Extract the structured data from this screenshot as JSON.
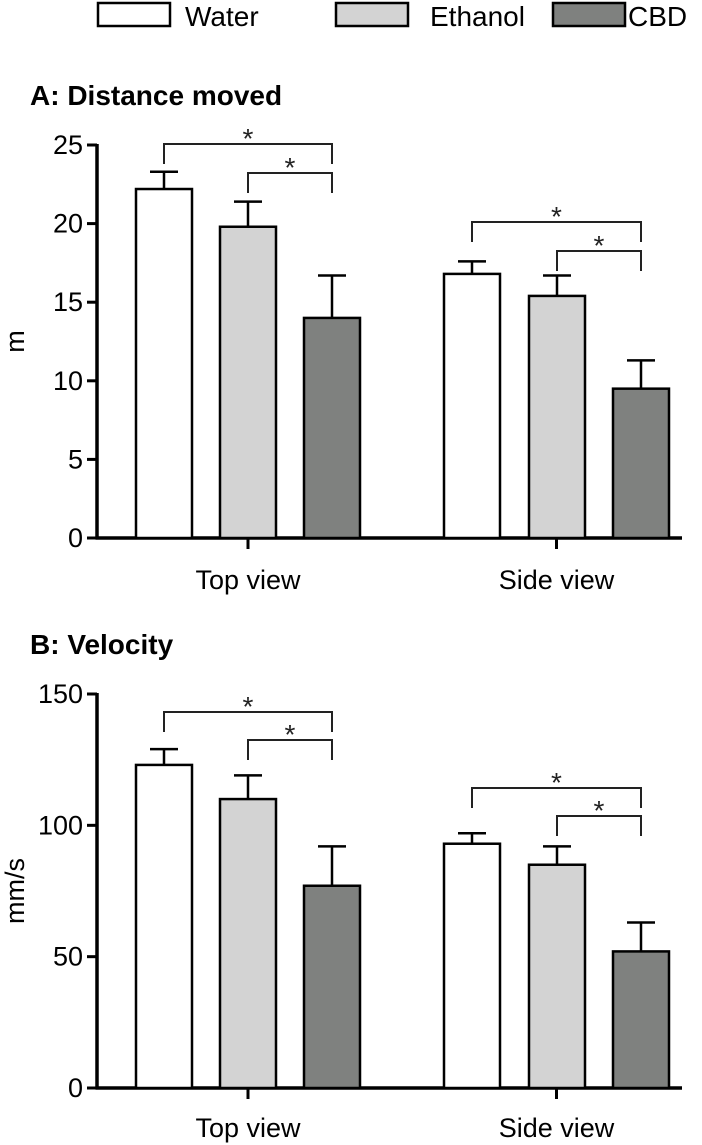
{
  "legend": [
    {
      "name": "Water",
      "color": "#ffffff"
    },
    {
      "name": "Ethanol",
      "color": "#d3d3d3"
    },
    {
      "name": "CBD",
      "color": "#7f817f"
    }
  ],
  "chart_data": [
    {
      "type": "bar",
      "title": "A: Distance moved",
      "ylabel": "m",
      "ylim": [
        0,
        25
      ],
      "yticks": [
        0,
        5,
        10,
        15,
        20,
        25
      ],
      "categories": [
        "Top view",
        "Side view"
      ],
      "series": [
        {
          "name": "Water",
          "values": [
            22.2,
            16.8
          ],
          "errors": [
            1.1,
            0.8
          ]
        },
        {
          "name": "Ethanol",
          "values": [
            19.8,
            15.4
          ],
          "errors": [
            1.6,
            1.3
          ]
        },
        {
          "name": "CBD",
          "values": [
            14.0,
            9.5
          ],
          "errors": [
            2.7,
            1.8
          ]
        }
      ],
      "significance": [
        {
          "category": 0,
          "from": "Water",
          "to": "CBD",
          "label": "*"
        },
        {
          "category": 0,
          "from": "Ethanol",
          "to": "CBD",
          "label": "*"
        },
        {
          "category": 1,
          "from": "Water",
          "to": "CBD",
          "label": "*"
        },
        {
          "category": 1,
          "from": "Ethanol",
          "to": "CBD",
          "label": "*"
        }
      ]
    },
    {
      "type": "bar",
      "title": "B: Velocity",
      "ylabel": "mm/s",
      "ylim": [
        0,
        150
      ],
      "yticks": [
        0,
        50,
        100,
        150
      ],
      "categories": [
        "Top view",
        "Side view"
      ],
      "series": [
        {
          "name": "Water",
          "values": [
            123,
            93
          ],
          "errors": [
            6,
            4
          ]
        },
        {
          "name": "Ethanol",
          "values": [
            110,
            85
          ],
          "errors": [
            9,
            7
          ]
        },
        {
          "name": "CBD",
          "values": [
            77,
            52
          ],
          "errors": [
            15,
            11
          ]
        }
      ],
      "significance": [
        {
          "category": 0,
          "from": "Water",
          "to": "CBD",
          "label": "*"
        },
        {
          "category": 0,
          "from": "Ethanol",
          "to": "CBD",
          "label": "*"
        },
        {
          "category": 1,
          "from": "Water",
          "to": "CBD",
          "label": "*"
        },
        {
          "category": 1,
          "from": "Ethanol",
          "to": "CBD",
          "label": "*"
        }
      ]
    }
  ]
}
